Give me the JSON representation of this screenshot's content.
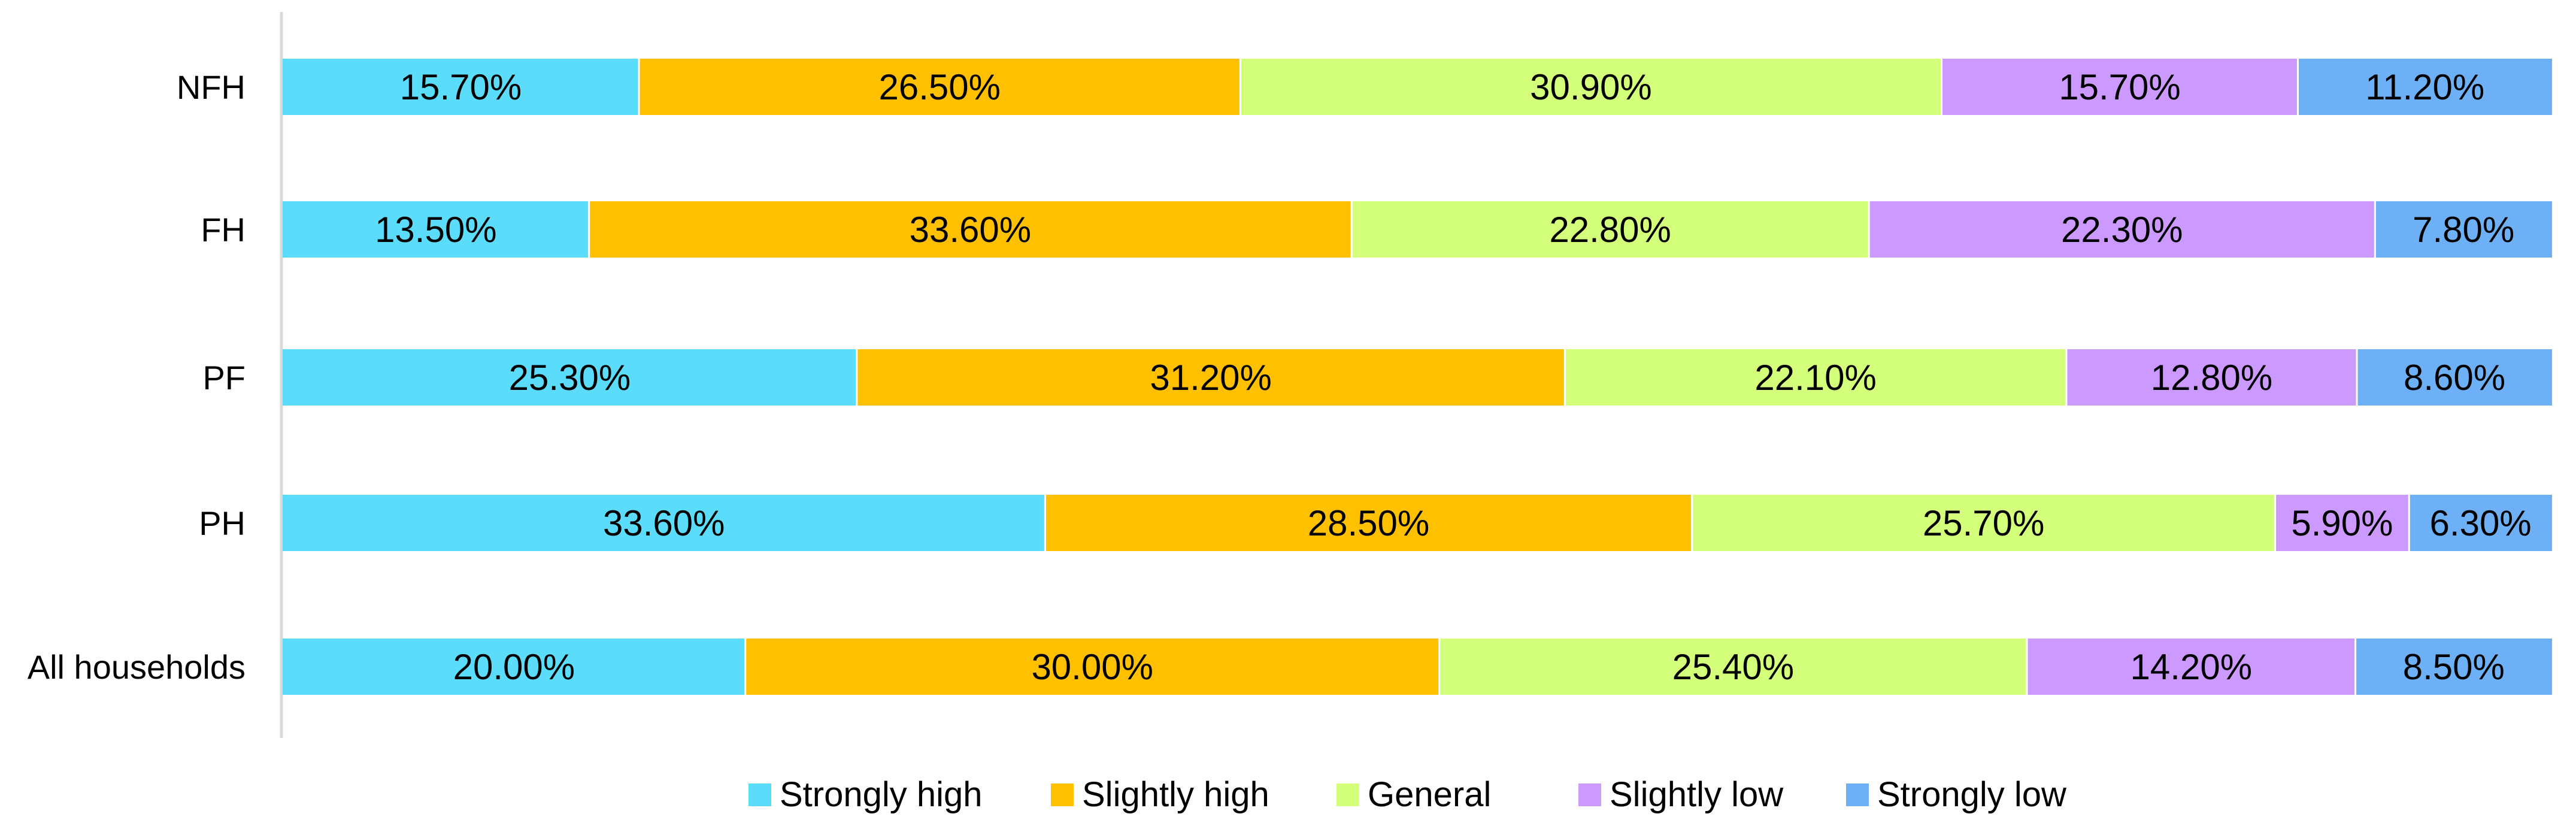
{
  "chart_data": {
    "type": "bar",
    "orientation": "horizontal",
    "stacked": true,
    "percent_stacked": true,
    "categories": [
      "NFH",
      "FH",
      "PF",
      "PH",
      "All households"
    ],
    "series": [
      {
        "name": "Strongly high",
        "color": "#5BDCFA",
        "values": [
          15.7,
          13.5,
          25.3,
          33.6,
          20.0
        ],
        "labels": [
          "15.70%",
          "13.50%",
          "25.30%",
          "33.60%",
          "20.00%"
        ]
      },
      {
        "name": "Slightly high",
        "color": "#FFC000",
        "values": [
          26.5,
          33.6,
          31.2,
          28.5,
          30.0
        ],
        "labels": [
          "26.50%",
          "33.60%",
          "31.20%",
          "28.50%",
          "30.00%"
        ]
      },
      {
        "name": "General",
        "color": "#D4FF7A",
        "values": [
          30.9,
          22.8,
          22.1,
          25.7,
          25.4
        ],
        "labels": [
          "30.90%",
          "22.80%",
          "22.10%",
          "25.70%",
          "25.40%"
        ]
      },
      {
        "name": "Slightly low",
        "color": "#CC99FF",
        "values": [
          15.7,
          22.3,
          12.8,
          5.9,
          14.2
        ],
        "labels": [
          "15.70%",
          "22.30%",
          "12.80%",
          "5.90%",
          "14.20%"
        ]
      },
      {
        "name": "Strongly low",
        "color": "#6EB0F5",
        "values": [
          11.2,
          7.8,
          8.6,
          6.3,
          8.5
        ],
        "labels": [
          "11.20%",
          "7.80%",
          "8.60%",
          "6.30%",
          "8.50%"
        ]
      }
    ],
    "xlim": [
      0,
      100
    ],
    "grid": false,
    "legend_position": "bottom"
  }
}
